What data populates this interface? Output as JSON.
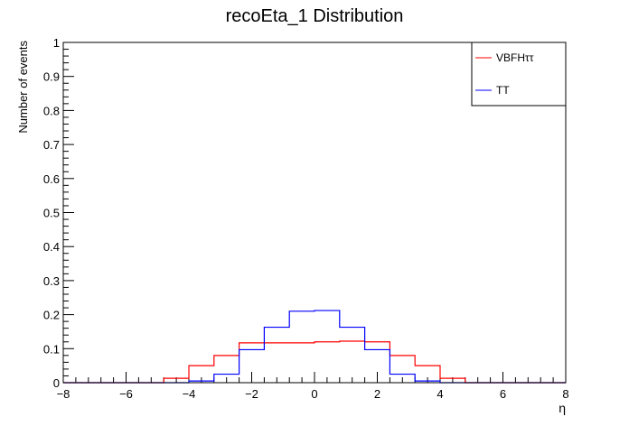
{
  "chart_data": {
    "type": "line",
    "title": "recoEta_1 Distribution",
    "xlabel": "η",
    "ylabel": "Number of events",
    "xlim": [
      -8,
      8
    ],
    "ylim": [
      0,
      1
    ],
    "xticks": [
      "−8",
      "−6",
      "−4",
      "−2",
      "0",
      "2",
      "4",
      "6",
      "8"
    ],
    "yticks": [
      "0",
      "0.1",
      "0.2",
      "0.3",
      "0.4",
      "0.5",
      "0.6",
      "0.7",
      "0.8",
      "0.9",
      "1"
    ],
    "grid": false,
    "legend_position": "top-right",
    "bin_edges": [
      -8,
      -7.2,
      -6.4,
      -5.6,
      -4.8,
      -4.0,
      -3.2,
      -2.4,
      -1.6,
      -0.8,
      0.0,
      0.8,
      1.6,
      2.4,
      3.2,
      4.0,
      4.8,
      5.6,
      6.4,
      7.2,
      8.0
    ],
    "series": [
      {
        "name": "VBFHττ",
        "color": "#ff0000",
        "values": [
          0,
          0,
          0,
          0,
          0.013,
          0.05,
          0.08,
          0.117,
          0.117,
          0.117,
          0.12,
          0.122,
          0.12,
          0.08,
          0.05,
          0.013,
          0,
          0,
          0,
          0
        ]
      },
      {
        "name": "TT",
        "color": "#0000ff",
        "values": [
          0,
          0,
          0,
          0,
          0,
          0.005,
          0.025,
          0.097,
          0.163,
          0.21,
          0.212,
          0.163,
          0.097,
          0.025,
          0.005,
          0,
          0,
          0,
          0,
          0
        ]
      }
    ]
  }
}
